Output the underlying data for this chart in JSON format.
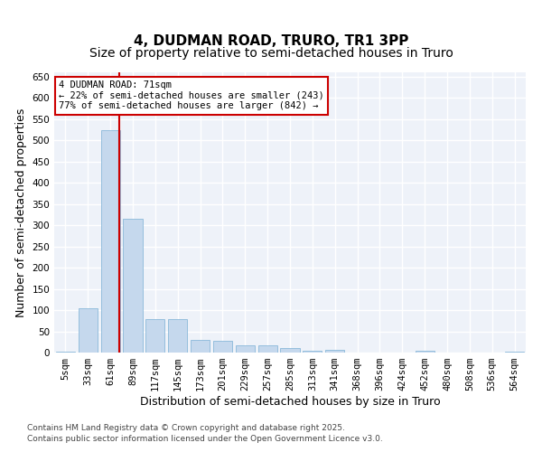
{
  "title": "4, DUDMAN ROAD, TRURO, TR1 3PP",
  "subtitle": "Size of property relative to semi-detached houses in Truro",
  "xlabel": "Distribution of semi-detached houses by size in Truro",
  "ylabel": "Number of semi-detached properties",
  "categories": [
    "5sqm",
    "33sqm",
    "61sqm",
    "89sqm",
    "117sqm",
    "145sqm",
    "173sqm",
    "201sqm",
    "229sqm",
    "257sqm",
    "285sqm",
    "313sqm",
    "341sqm",
    "368sqm",
    "396sqm",
    "424sqm",
    "452sqm",
    "480sqm",
    "508sqm",
    "536sqm",
    "564sqm"
  ],
  "values": [
    2,
    104,
    524,
    315,
    78,
    78,
    30,
    28,
    17,
    16,
    10,
    5,
    7,
    0,
    0,
    0,
    5,
    0,
    0,
    0,
    2
  ],
  "bar_color": "#c5d8ed",
  "bar_edge_color": "#7aafd4",
  "property_size": 71,
  "property_bin_index": 2,
  "annotation_title": "4 DUDMAN ROAD: 71sqm",
  "annotation_line1": "← 22% of semi-detached houses are smaller (243)",
  "annotation_line2": "77% of semi-detached houses are larger (842) →",
  "vline_color": "#cc0000",
  "annotation_box_color": "#ffffff",
  "annotation_box_edge": "#cc0000",
  "footer1": "Contains HM Land Registry data © Crown copyright and database right 2025.",
  "footer2": "Contains public sector information licensed under the Open Government Licence v3.0.",
  "ylim": [
    0,
    660
  ],
  "yticks": [
    0,
    50,
    100,
    150,
    200,
    250,
    300,
    350,
    400,
    450,
    500,
    550,
    600,
    650
  ],
  "bg_color": "#eef2f9",
  "grid_color": "#ffffff",
  "title_fontsize": 11,
  "subtitle_fontsize": 10,
  "tick_fontsize": 7.5,
  "label_fontsize": 9
}
